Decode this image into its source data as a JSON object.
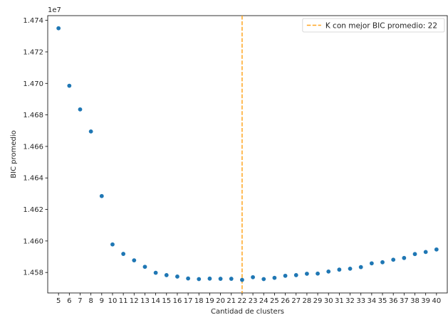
{
  "chart_data": {
    "type": "scatter",
    "title": "",
    "xlabel": "Cantidad de clusters",
    "ylabel": "BIC promedio",
    "y_offset_label": "1e7",
    "y_scale": 10000000,
    "xlim": [
      4,
      41
    ],
    "ylim": [
      14567000,
      14743000
    ],
    "x_ticks": [
      5,
      6,
      7,
      8,
      9,
      10,
      11,
      12,
      13,
      14,
      15,
      16,
      17,
      18,
      19,
      20,
      21,
      22,
      23,
      24,
      25,
      26,
      27,
      28,
      29,
      30,
      31,
      32,
      33,
      34,
      35,
      36,
      37,
      38,
      39,
      40
    ],
    "y_ticks": [
      {
        "value": 14580000,
        "label": "1.458"
      },
      {
        "value": 14600000,
        "label": "1.460"
      },
      {
        "value": 14620000,
        "label": "1.462"
      },
      {
        "value": 14640000,
        "label": "1.464"
      },
      {
        "value": 14660000,
        "label": "1.466"
      },
      {
        "value": 14680000,
        "label": "1.468"
      },
      {
        "value": 14700000,
        "label": "1.470"
      },
      {
        "value": 14720000,
        "label": "1.472"
      },
      {
        "value": 14740000,
        "label": "1.474"
      }
    ],
    "grid": false,
    "legend_position": "top-right",
    "series": [
      {
        "color": "#1f77b4",
        "x": [
          5,
          6,
          7,
          8,
          9,
          10,
          11,
          12,
          13,
          14,
          15,
          16,
          17,
          18,
          19,
          20,
          21,
          22,
          23,
          24,
          25,
          26,
          27,
          28,
          29,
          30,
          31,
          32,
          33,
          34,
          35,
          36,
          37,
          38,
          39,
          40
        ],
        "y": [
          14735000,
          14698500,
          14683500,
          14669500,
          14628500,
          14597800,
          14591800,
          14587700,
          14583600,
          14579800,
          14578300,
          14577400,
          14576200,
          14575800,
          14576100,
          14576000,
          14576000,
          14575300,
          14577000,
          14575800,
          14576600,
          14577900,
          14578300,
          14579200,
          14579300,
          14580600,
          14581800,
          14582400,
          14583400,
          14585800,
          14586500,
          14588100,
          14589200,
          14591700,
          14593000,
          14594600
        ]
      }
    ],
    "reference_line": {
      "orientation": "vertical",
      "x": 22,
      "color": "#ffa51f",
      "style": "dashed",
      "legend_label": "K con mejor BIC promedio: 22"
    }
  }
}
